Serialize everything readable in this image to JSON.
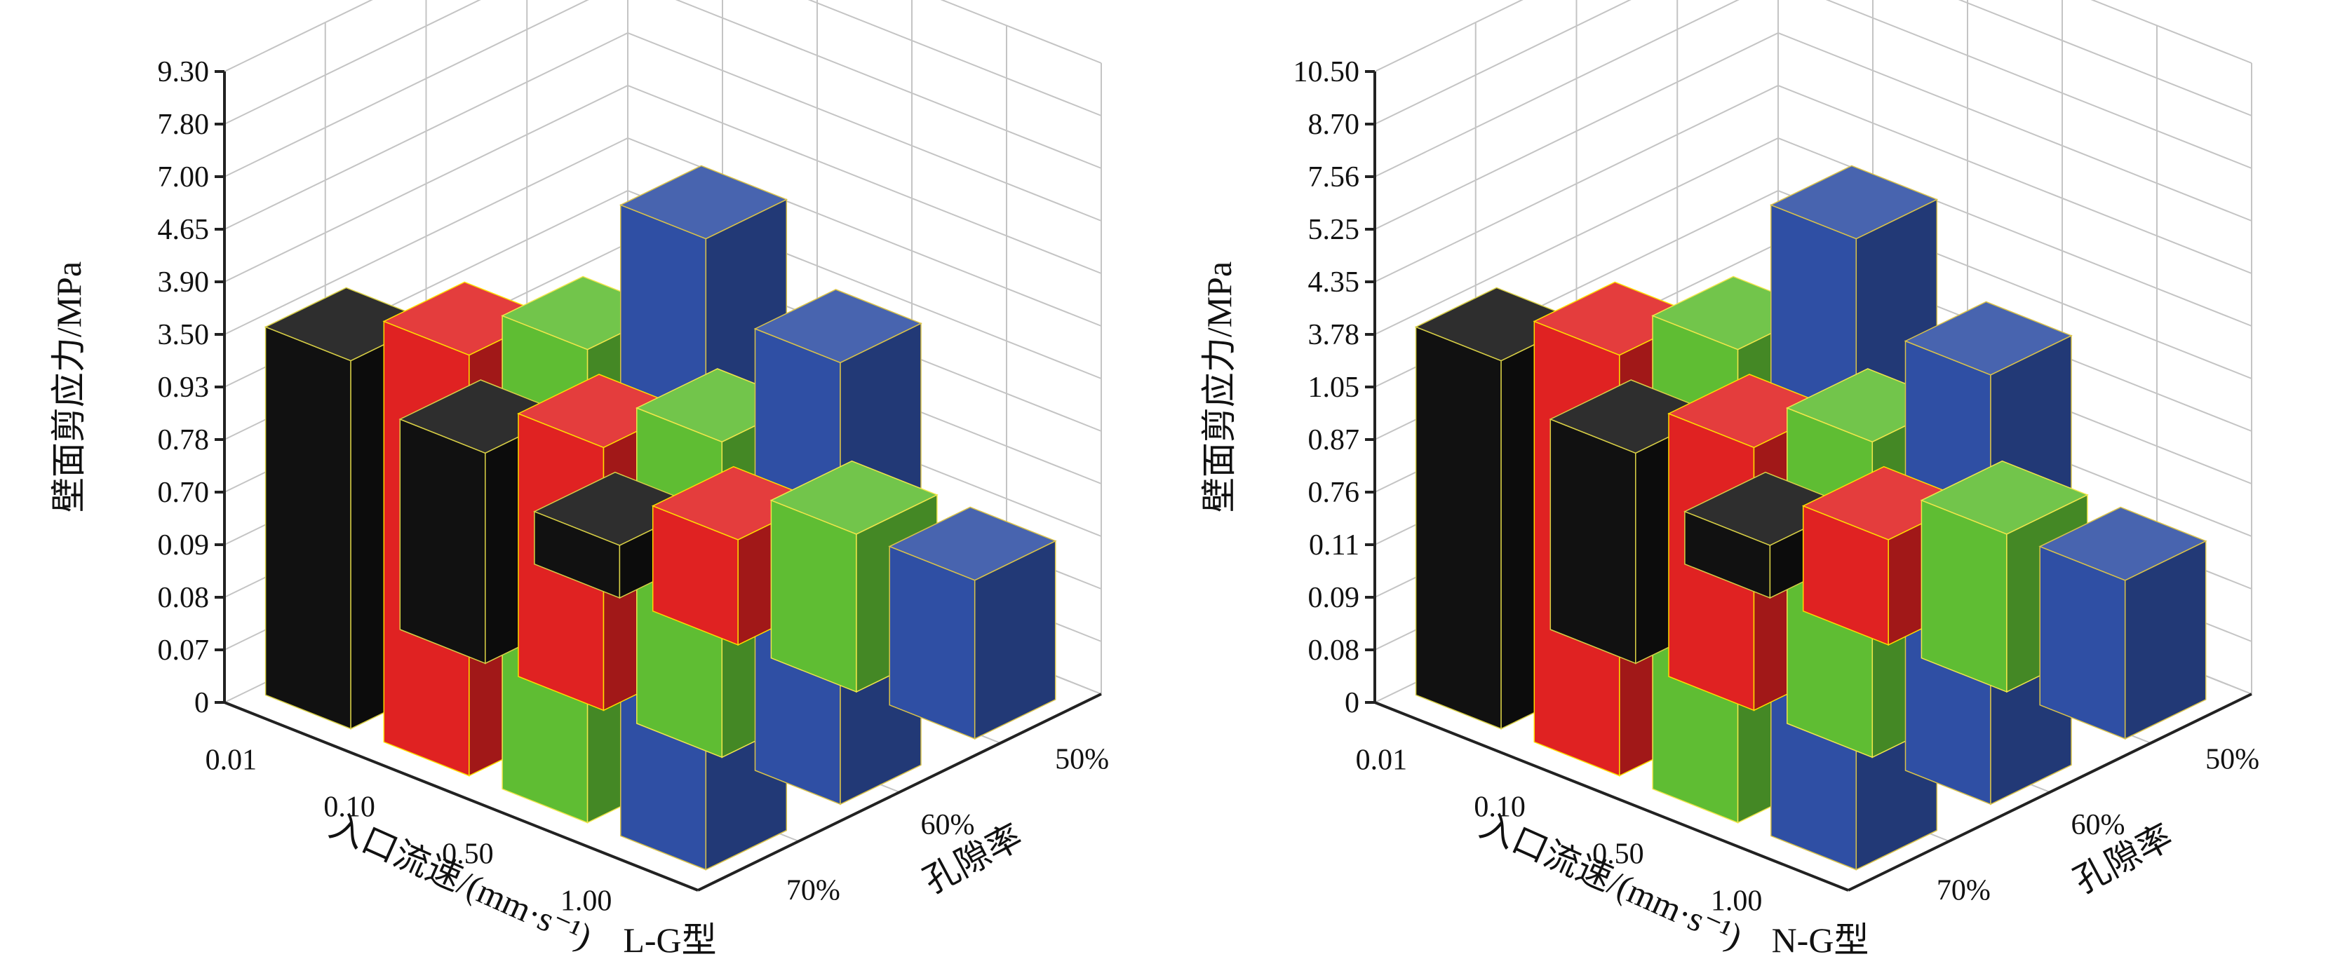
{
  "colors": {
    "rows": [
      "#111111",
      "#e02222",
      "#5fbd33",
      "#2f4fa4"
    ],
    "edges": [
      "#d8cf45",
      "#ffdc00",
      "#f0e64a",
      "#d9c24a"
    ]
  },
  "chart_data": [
    {
      "type": "bar3d",
      "panel_label": "L-G型",
      "zlabel": "壁面剪应力/MPa",
      "xlabel": "入口流速/(mm·s⁻¹)",
      "ylabel": "孔隙率",
      "z_ticks": [
        "0",
        "0.07",
        "0.08",
        "0.09",
        "0.70",
        "0.78",
        "0.93",
        "3.50",
        "3.90",
        "4.65",
        "7.00",
        "7.80",
        "9.30"
      ],
      "x_categories": [
        "0.01",
        "0.10",
        "0.50",
        "1.00"
      ],
      "y_categories": [
        "50%",
        "60%",
        "70%"
      ],
      "series": [
        {
          "porosity": "70%",
          "values": [
            0.07,
            0.08,
            0.09,
            0.1
          ]
        },
        {
          "porosity": "60%",
          "values": [
            0.7,
            0.78,
            0.93,
            4.2
          ]
        },
        {
          "porosity": "50%",
          "values": [
            3.5,
            3.9,
            4.65,
            9.3
          ]
        }
      ]
    },
    {
      "type": "bar3d",
      "panel_label": "N-G型",
      "zlabel": "壁面剪应力/MPa",
      "xlabel": "入口流速/(mm·s⁻¹)",
      "ylabel": "孔隙率",
      "z_ticks": [
        "0",
        "0.08",
        "0.09",
        "0.11",
        "0.76",
        "0.87",
        "1.05",
        "3.78",
        "4.35",
        "5.25",
        "7.56",
        "8.70",
        "10.50"
      ],
      "x_categories": [
        "0.01",
        "0.10",
        "0.50",
        "1.00"
      ],
      "y_categories": [
        "50%",
        "60%",
        "70%"
      ],
      "series": [
        {
          "porosity": "70%",
          "values": [
            0.08,
            0.09,
            0.11,
            0.12
          ]
        },
        {
          "porosity": "60%",
          "values": [
            0.76,
            0.87,
            1.05,
            4.5
          ]
        },
        {
          "porosity": "50%",
          "values": [
            3.78,
            4.35,
            5.25,
            10.5
          ]
        }
      ]
    }
  ]
}
